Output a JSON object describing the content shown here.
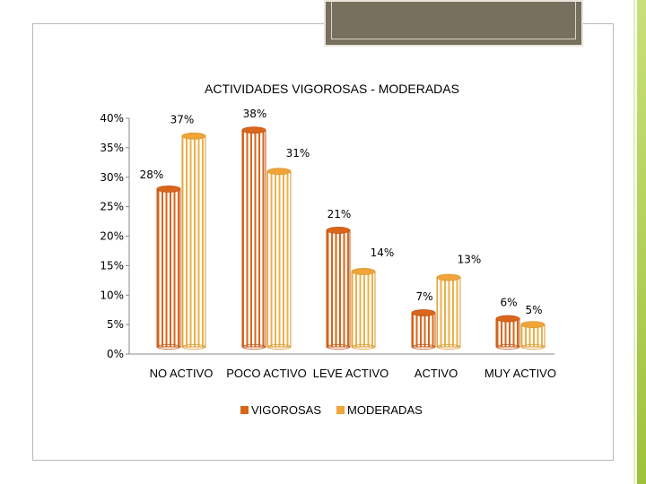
{
  "chart_data": {
    "type": "bar",
    "title": "ACTIVIDADES VIGOROSAS - MODERADAS",
    "categories": [
      "NO ACTIVO",
      "POCO ACTIVO",
      "LEVE ACTIVO",
      "ACTIVO",
      "MUY ACTIVO"
    ],
    "series": [
      {
        "name": "VIGOROSAS",
        "values": [
          28,
          38,
          21,
          7,
          6
        ],
        "labels": [
          "28%",
          "38%",
          "21%",
          "7%",
          "6%"
        ]
      },
      {
        "name": "MODERADAS",
        "values": [
          37,
          31,
          14,
          13,
          5
        ],
        "labels": [
          "37%",
          "31%",
          "14%",
          "13%",
          "5%"
        ]
      }
    ],
    "yticks": [
      "0%",
      "5%",
      "10%",
      "15%",
      "20%",
      "25%",
      "30%",
      "35%",
      "40%"
    ],
    "ylim": [
      0,
      40
    ],
    "legend": "bottom",
    "colors": {
      "VIGOROSAS": "#d9661a",
      "MODERADAS": "#f0a43a"
    }
  }
}
